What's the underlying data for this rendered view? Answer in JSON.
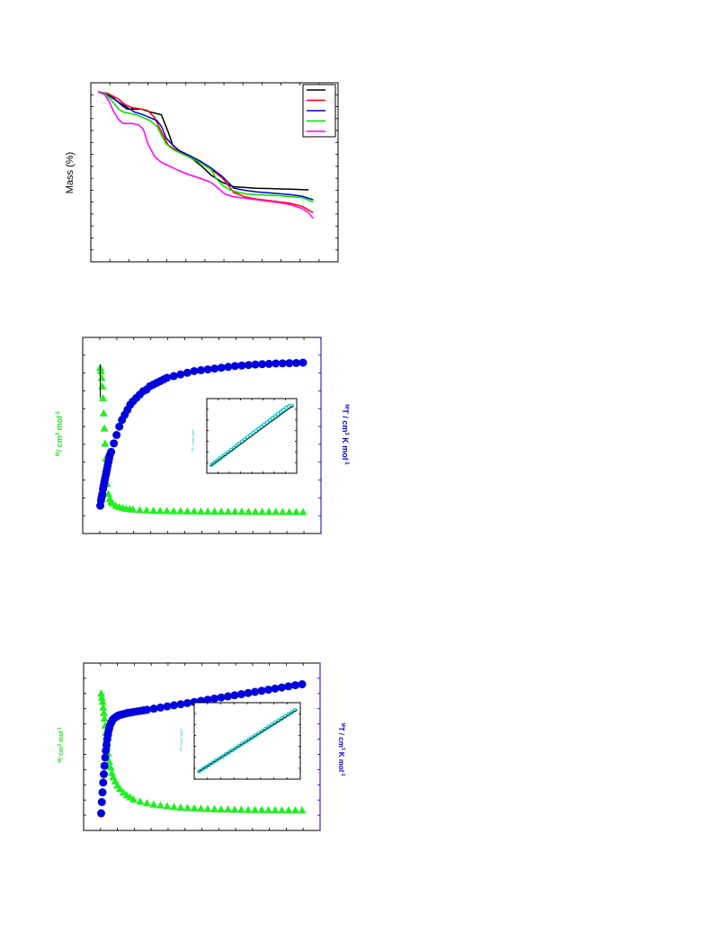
{
  "chart_data": [
    {
      "type": "line",
      "ylabel": "Mass (%)",
      "xlim": [
        0,
        10
      ],
      "ylim": [
        0,
        100
      ],
      "grid": false,
      "legend_position": "top-right",
      "series": [
        {
          "color": "#000000",
          "x": [
            0,
            0.5,
            1.1,
            1.3,
            1.5,
            1.9,
            2.3,
            2.8,
            3.1,
            3.3,
            3.5,
            3.8,
            4.2,
            4.6,
            5.0,
            5.5,
            6.0,
            6.5,
            7.0,
            7.5,
            8.0,
            8.5,
            9.0,
            9.3
          ],
          "y": [
            100,
            98,
            90,
            88,
            88,
            88,
            86,
            84,
            72,
            63,
            60,
            57,
            53,
            48,
            42,
            37,
            34,
            33.5,
            33,
            32.8,
            32.5,
            32.3,
            32,
            31.8
          ]
        },
        {
          "color": "#ff0000",
          "x": [
            0,
            0.4,
            0.9,
            1.2,
            1.5,
            1.9,
            2.2,
            2.5,
            2.8,
            3.1,
            3.5,
            4.0,
            4.5,
            5.0,
            5.5,
            6.0,
            6.5,
            7.0,
            7.5,
            8.0,
            8.5,
            9.0,
            9.5
          ],
          "y": [
            100,
            99,
            95,
            91,
            89,
            88,
            87,
            82,
            72,
            63,
            59,
            55,
            51,
            46,
            40,
            30,
            27,
            25.5,
            24.5,
            23.5,
            22.5,
            20.5,
            16
          ]
        },
        {
          "color": "#0000cc",
          "x": [
            0,
            0.3,
            0.6,
            0.9,
            1.2,
            1.6,
            2.0,
            2.3,
            2.6,
            2.8,
            3.0,
            3.3,
            3.6,
            4.0,
            4.5,
            5.0,
            5.5,
            6.0,
            6.5,
            7.0,
            7.5,
            8.0,
            8.5,
            9.0,
            9.5
          ],
          "y": [
            100,
            99,
            96,
            93,
            90,
            86,
            84,
            82,
            80,
            76,
            68,
            63,
            59,
            56,
            52,
            47,
            41,
            33,
            31.5,
            30.5,
            29.8,
            29.2,
            28.5,
            27.5,
            25
          ]
        },
        {
          "color": "#00dd00",
          "x": [
            0,
            0.3,
            0.6,
            0.9,
            1.1,
            1.4,
            1.7,
            2.0,
            2.3,
            2.6,
            2.8,
            3.0,
            3.3,
            3.7,
            4.1,
            4.6,
            5.0,
            5.2,
            5.5,
            5.8,
            6.2,
            6.6,
            7.0,
            7.5,
            8.0,
            8.5,
            9.0,
            9.5
          ],
          "y": [
            100,
            99,
            94,
            88,
            86,
            85,
            84,
            82,
            80,
            76,
            70,
            64,
            60,
            57,
            54,
            50,
            46,
            40,
            35,
            32,
            30,
            29,
            28.5,
            28.2,
            27.8,
            27.2,
            26.5,
            23.5
          ]
        },
        {
          "color": "#ff00ff",
          "x": [
            0,
            0.3,
            0.5,
            0.7,
            0.9,
            1.1,
            1.5,
            1.8,
            2.0,
            2.2,
            2.5,
            2.8,
            3.2,
            3.6,
            4.0,
            4.5,
            5.0,
            5.3,
            5.6,
            6.0,
            6.5,
            7.0,
            7.5,
            8.0,
            8.5,
            9.0,
            9.3,
            9.5
          ],
          "y": [
            100,
            98,
            93,
            86,
            81,
            78,
            78,
            77,
            74,
            64,
            55,
            51,
            48,
            45,
            42.5,
            40,
            37,
            33,
            29,
            27,
            26,
            25,
            24,
            23,
            21.5,
            19,
            16,
            12
          ]
        }
      ]
    },
    {
      "type": "scatter",
      "ylabel_left": "/ cm",
      "ylabel_left_sup1": "M",
      "ylabel_left_sup2": "3",
      "ylabel_left_tail": " mol",
      "ylabel_left_sup3": "-1",
      "ylabel_right": "T / cm",
      "ylabel_right_sup1": "M",
      "ylabel_right_sup2": "3",
      "ylabel_right_tail": " K mol",
      "ylabel_right_sup3": "-1",
      "xlim": [
        0,
        300
      ],
      "ylim_left": [
        0,
        100
      ],
      "ylim_right": [
        0,
        100
      ],
      "series": [
        {
          "marker": "triangle",
          "color": "#22ee22",
          "axis": "left",
          "x": [
            2,
            3,
            4,
            5,
            6,
            7,
            8,
            9,
            10,
            11,
            12,
            14,
            16,
            18,
            20,
            25,
            30,
            35,
            40,
            45,
            50,
            60,
            70,
            80,
            90,
            100,
            110,
            120,
            130,
            140,
            150,
            160,
            170,
            180,
            190,
            200,
            210,
            220,
            230,
            240,
            250,
            260,
            270,
            280,
            290,
            300
          ],
          "y": [
            90,
            88,
            84,
            79,
            72,
            63,
            54,
            45,
            36,
            28,
            21,
            15,
            12,
            10.5,
            9.5,
            8,
            7.2,
            6.7,
            6.3,
            6,
            5.8,
            5.5,
            5.3,
            5.1,
            5,
            4.9,
            4.8,
            4.8,
            4.7,
            4.7,
            4.6,
            4.6,
            4.6,
            4.5,
            4.5,
            4.5,
            4.5,
            4.4,
            4.4,
            4.4,
            4.4,
            4.4,
            4.3,
            4.3,
            4.3,
            4.3
          ]
        },
        {
          "marker": "circle",
          "color": "#0000dd",
          "axis": "right",
          "x": [
            2,
            3,
            4,
            5,
            6,
            7,
            8,
            9,
            10,
            11,
            12,
            13,
            14,
            15,
            16,
            18,
            22,
            26,
            30,
            34,
            38,
            42,
            46,
            50,
            55,
            60,
            65,
            70,
            75,
            80,
            85,
            90,
            95,
            100,
            110,
            120,
            130,
            140,
            150,
            160,
            170,
            180,
            190,
            200,
            210,
            220,
            230,
            240,
            250,
            260,
            270,
            280,
            290,
            300
          ],
          "y": [
            8,
            11,
            13,
            15,
            18,
            20,
            22,
            24,
            26,
            28,
            30,
            32,
            34,
            36,
            38,
            40,
            45,
            50,
            55,
            59,
            62,
            65,
            68,
            70,
            72,
            74,
            76,
            77,
            79,
            80,
            81,
            82,
            83,
            84,
            85,
            86,
            87,
            88,
            88.5,
            89,
            89.5,
            90,
            90.5,
            91,
            91.3,
            91.6,
            91.9,
            92.1,
            92.3,
            92.5,
            92.6,
            92.7,
            92.8,
            93
          ]
        },
        {
          "marker": "line",
          "color": "#000000",
          "axis": "left",
          "x": [
            2,
            2
          ],
          "y": [
            92,
            72
          ]
        }
      ],
      "inset": {
        "ylabel": "T / cm",
        "ylabel_sup1": "M",
        "ylabel_sup2": "3",
        "ylabel_tail": " mol",
        "ylabel_sup3": "-1",
        "xlim": [
          0,
          300
        ],
        "ylim": [
          0,
          100
        ],
        "points_x": [
          5,
          15,
          25,
          35,
          45,
          55,
          65,
          75,
          85,
          95,
          105,
          115,
          125,
          135,
          145,
          155,
          165,
          175,
          185,
          195,
          205,
          215,
          225,
          235,
          245,
          255,
          265,
          275,
          285,
          295
        ],
        "points_y": [
          5,
          8.4,
          11.8,
          15.2,
          18.6,
          22,
          25.4,
          28.8,
          32.2,
          35.6,
          39,
          42.4,
          45.8,
          49.2,
          52.6,
          56,
          59.4,
          62.8,
          66.2,
          69.6,
          73,
          76.4,
          79.8,
          83.2,
          86.6,
          90,
          93.4,
          96.8,
          99,
          100
        ],
        "fit_x": [
          0,
          300
        ],
        "fit_y": [
          3,
          100
        ]
      }
    },
    {
      "type": "scatter",
      "ylabel_left": "/ cm",
      "ylabel_left_sup1": "M",
      "ylabel_left_sup2": "3",
      "ylabel_left_tail": " mol",
      "ylabel_left_sup3": "-1",
      "ylabel_right": "T / cm",
      "ylabel_right_sup1": "M",
      "ylabel_right_sup2": "3",
      "ylabel_right_tail": " K mol",
      "ylabel_right_sup3": "-1",
      "xlim": [
        0,
        300
      ],
      "ylim_left": [
        0,
        100
      ],
      "ylim_right": [
        0,
        100
      ],
      "series": [
        {
          "marker": "triangle",
          "color": "#22ee22",
          "axis": "left",
          "x": [
            2,
            3,
            4,
            5,
            6,
            7,
            8,
            9,
            10,
            11,
            12,
            14,
            16,
            18,
            20,
            23,
            26,
            30,
            35,
            40,
            45,
            50,
            60,
            70,
            80,
            90,
            100,
            110,
            120,
            130,
            140,
            150,
            160,
            170,
            180,
            190,
            200,
            210,
            220,
            230,
            240,
            250,
            260,
            270,
            280,
            290,
            300
          ],
          "y": [
            88,
            85,
            82,
            78,
            74,
            70,
            65,
            60,
            55,
            50,
            45,
            39,
            35,
            31,
            28,
            25,
            22,
            19.5,
            17,
            15,
            13.5,
            12,
            10.5,
            9.3,
            8.4,
            7.7,
            7.1,
            6.6,
            6.2,
            5.9,
            5.6,
            5.4,
            5.2,
            5.0,
            4.9,
            4.8,
            4.7,
            4.6,
            4.5,
            4.45,
            4.4,
            4.35,
            4.3,
            4.25,
            4.2,
            4.2,
            4.2
          ]
        },
        {
          "marker": "circle",
          "color": "#0000dd",
          "axis": "right",
          "x": [
            2,
            3,
            4,
            5,
            6,
            7,
            8,
            9,
            10,
            11,
            12,
            13,
            14,
            15,
            17,
            19,
            21,
            24,
            27,
            30,
            34,
            38,
            42,
            46,
            50,
            55,
            60,
            65,
            70,
            80,
            90,
            100,
            110,
            120,
            130,
            140,
            150,
            160,
            170,
            180,
            190,
            200,
            210,
            220,
            230,
            240,
            250,
            260,
            270,
            280,
            290,
            300
          ],
          "y": [
            2,
            10,
            17,
            24,
            30,
            36,
            42,
            47,
            51,
            55,
            58,
            61,
            63,
            65,
            67,
            69,
            70,
            71,
            72,
            72.5,
            73,
            73.5,
            74,
            74.3,
            74.6,
            75,
            75.4,
            75.8,
            76.2,
            77,
            77.8,
            78.6,
            79.4,
            80.2,
            81,
            81.8,
            82.6,
            83.4,
            84.2,
            85,
            85.8,
            86.6,
            87.4,
            88.2,
            89,
            89.8,
            90.6,
            91.4,
            92.2,
            93,
            93.8,
            94.5
          ]
        }
      ],
      "inset": {
        "ylabel": "T / cm",
        "ylabel_sup1": "M",
        "ylabel_sup2": "3",
        "ylabel_tail": " mol",
        "ylabel_sup3": "-1",
        "xlim": [
          0,
          300
        ],
        "ylim": [
          0,
          100
        ],
        "points_x": [
          5,
          15,
          25,
          35,
          45,
          55,
          65,
          75,
          85,
          95,
          105,
          115,
          125,
          135,
          145,
          155,
          165,
          175,
          185,
          195,
          205,
          215,
          225,
          235,
          245,
          255,
          265,
          275,
          285,
          295
        ],
        "points_y": [
          4,
          7.3,
          10.6,
          13.9,
          17.2,
          20.5,
          23.8,
          27.1,
          30.4,
          33.7,
          37,
          40.3,
          43.6,
          46.9,
          50.2,
          53.5,
          56.8,
          60.1,
          63.4,
          66.7,
          70,
          73.3,
          76.6,
          79.9,
          83.2,
          86.5,
          89.8,
          93.1,
          96.4,
          99.5
        ],
        "fit_x": [
          0,
          300
        ],
        "fit_y": [
          2.5,
          100
        ]
      }
    }
  ]
}
